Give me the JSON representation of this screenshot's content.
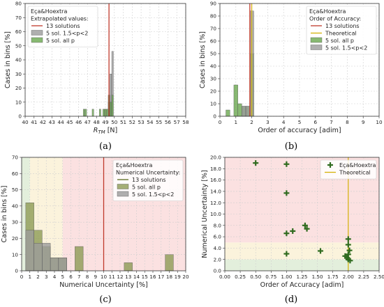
{
  "figure": {
    "panel_labels": [
      "(a)",
      "(b)",
      "(c)",
      "(d)"
    ]
  },
  "chart_data": [
    {
      "type": "bar",
      "panel": "(a)",
      "xlabel": "R_TM [N]",
      "ylabel": "Cases in bins [%]",
      "xlim": [
        40,
        58
      ],
      "ylim": [
        0,
        80
      ],
      "xticks": [
        40,
        41,
        42,
        43,
        44,
        45,
        46,
        47,
        48,
        49,
        50,
        51,
        52,
        53,
        54,
        55,
        56,
        57,
        58
      ],
      "yticks": [
        0,
        10,
        20,
        30,
        40,
        50,
        60,
        70,
        80
      ],
      "grid": true,
      "legend_title": "Eça&Hoextra\nExtrapolated values:",
      "legend_position": "top-left",
      "colors": {
        "line": "#c0392b",
        "s1": "#9b9b9b",
        "s2": "#6aa84f"
      },
      "vline": {
        "name": "13 solutions",
        "x": 49.4
      },
      "series": [
        {
          "name": "5 sol. 1.5<p<2",
          "bin_width": 0.18,
          "bins": [
            {
              "x": 49.0,
              "y": 5
            },
            {
              "x": 49.4,
              "y": 10
            },
            {
              "x": 49.6,
              "y": 30
            },
            {
              "x": 49.8,
              "y": 46
            }
          ]
        },
        {
          "name": "5 sol. all p",
          "bin_width": 0.18,
          "bins": [
            {
              "x": 46.6,
              "y": 5
            },
            {
              "x": 46.8,
              "y": 5
            },
            {
              "x": 47.6,
              "y": 5
            },
            {
              "x": 48.4,
              "y": 5
            },
            {
              "x": 48.8,
              "y": 5
            },
            {
              "x": 49.0,
              "y": 5
            },
            {
              "x": 49.2,
              "y": 5
            },
            {
              "x": 49.4,
              "y": 15
            },
            {
              "x": 49.6,
              "y": 10
            },
            {
              "x": 49.8,
              "y": 15
            }
          ]
        }
      ]
    },
    {
      "type": "bar",
      "panel": "(b)",
      "xlabel": "Order of accuracy [adim]",
      "ylabel": "Cases in bins [%]",
      "xlim": [
        0,
        10
      ],
      "ylim": [
        0,
        90
      ],
      "xticks": [
        0,
        1,
        2,
        3,
        4,
        5,
        6,
        7,
        8,
        9,
        10
      ],
      "yticks": [
        0,
        10,
        20,
        30,
        40,
        50,
        60,
        70,
        80,
        90
      ],
      "grid": true,
      "legend_title": "Eça&Hoextra\nOrder of Accuracy:",
      "legend_position": "top-right",
      "colors": {
        "line": "#c0392b",
        "theory": "#d4b106",
        "s1": "#6aa84f",
        "s2": "#9b9b9b"
      },
      "vline": {
        "name": "13 solutions",
        "x": 1.88
      },
      "theoretical": {
        "name": "Theoretical",
        "x": 2.0
      },
      "series": [
        {
          "name": "5 sol. all p",
          "bin_width": 0.25,
          "bins": [
            {
              "x": 0.5,
              "y": 5
            },
            {
              "x": 1.0,
              "y": 25
            },
            {
              "x": 1.25,
              "y": 10
            },
            {
              "x": 1.5,
              "y": 8
            },
            {
              "x": 1.75,
              "y": 8
            },
            {
              "x": 2.0,
              "y": 50
            }
          ]
        },
        {
          "name": "5 sol. 1.5<p<2",
          "bin_width": 0.25,
          "bins": [
            {
              "x": 1.5,
              "y": 8
            },
            {
              "x": 1.75,
              "y": 8
            },
            {
              "x": 2.0,
              "y": 84
            }
          ]
        }
      ]
    },
    {
      "type": "bar",
      "panel": "(c)",
      "xlabel": "Numerical Uncertainty [%]",
      "ylabel": "Cases in bins [%]",
      "xlim": [
        0,
        20
      ],
      "ylim": [
        0,
        70
      ],
      "xticks": [
        0,
        1,
        2,
        3,
        4,
        5,
        6,
        7,
        8,
        9,
        10,
        11,
        12,
        13,
        14,
        15,
        16,
        17,
        18,
        19,
        20
      ],
      "yticks": [
        0,
        10,
        20,
        30,
        40,
        50,
        60,
        70
      ],
      "grid": true,
      "legend_title": "Eça&Hoextra\nNumerical Uncertainty:",
      "legend_position": "top-right",
      "colors": {
        "line": "#c0392b",
        "vline_legend": "#5b6b1f",
        "s1": "#8d9b55",
        "s2": "#9b9b9b",
        "zone_green": "#e3efdc",
        "zone_yellow": "#fbf3dc",
        "zone_red": "#fbe1e1"
      },
      "zones": [
        {
          "from": 0,
          "to": 1,
          "color": "zone_green"
        },
        {
          "from": 1,
          "to": 5,
          "color": "zone_yellow"
        },
        {
          "from": 5,
          "to": 20,
          "color": "zone_red"
        }
      ],
      "vline": {
        "name": "13 solutions",
        "x": 10
      },
      "series": [
        {
          "name": "5 sol. all p",
          "bin_width": 1,
          "bins": [
            {
              "x": 1,
              "y": 42
            },
            {
              "x": 2,
              "y": 25
            },
            {
              "x": 3,
              "y": 15
            },
            {
              "x": 4,
              "y": 8
            },
            {
              "x": 5,
              "y": 8
            },
            {
              "x": 7,
              "y": 15
            },
            {
              "x": 13,
              "y": 5
            },
            {
              "x": 18,
              "y": 10
            }
          ]
        },
        {
          "name": "5 sol. 1.5<p<2",
          "bin_width": 1,
          "bins": [
            {
              "x": 1,
              "y": 25
            },
            {
              "x": 2,
              "y": 17
            },
            {
              "x": 3,
              "y": 17
            },
            {
              "x": 4,
              "y": 8
            },
            {
              "x": 5,
              "y": 8
            }
          ]
        }
      ]
    },
    {
      "type": "scatter",
      "panel": "(d)",
      "xlabel": "Order of Accuracy [adim]",
      "ylabel": "Numerical Uncertainty [%]",
      "xlim": [
        0,
        2.5
      ],
      "ylim": [
        0,
        20
      ],
      "xticks": [
        0.0,
        0.25,
        0.5,
        0.75,
        1.0,
        1.25,
        1.5,
        1.75,
        2.0,
        2.25,
        2.5
      ],
      "xtick_labels": [
        "0.00",
        "0.25",
        "0.50",
        "0.75",
        "1.00",
        "1.25",
        "1.50",
        "1.75",
        "2.00",
        "2.25",
        "2.50"
      ],
      "yticks": [
        0,
        2,
        4,
        6,
        8,
        10,
        12,
        14,
        16,
        18,
        20
      ],
      "ytick_labels": [
        "0.0",
        "2.0",
        "4.0",
        "6.0",
        "8.0",
        "10.0",
        "12.0",
        "14.0",
        "16.0",
        "18.0",
        "20.0"
      ],
      "grid": true,
      "legend_position": "top-right",
      "colors": {
        "marker": "#2f6b1f",
        "theory": "#d4b106",
        "zone_green": "#e3efdc",
        "zone_yellow": "#fbf3dc",
        "zone_red": "#fbe1e1"
      },
      "zones": [
        {
          "from": 0,
          "to": 2,
          "color": "zone_green"
        },
        {
          "from": 2,
          "to": 5,
          "color": "zone_yellow"
        },
        {
          "from": 5,
          "to": 20,
          "color": "zone_red"
        }
      ],
      "theoretical": {
        "name": "Theoretical",
        "x": 2.0
      },
      "series": [
        {
          "name": "Eça&Hoextra",
          "points": [
            {
              "x": 0.5,
              "y": 19.0
            },
            {
              "x": 1.0,
              "y": 18.8
            },
            {
              "x": 1.0,
              "y": 13.7
            },
            {
              "x": 1.0,
              "y": 6.6
            },
            {
              "x": 1.0,
              "y": 3.0
            },
            {
              "x": 1.1,
              "y": 7.0
            },
            {
              "x": 1.3,
              "y": 8.0
            },
            {
              "x": 1.33,
              "y": 7.4
            },
            {
              "x": 1.55,
              "y": 3.5
            },
            {
              "x": 1.95,
              "y": 2.6
            },
            {
              "x": 2.0,
              "y": 5.6
            },
            {
              "x": 2.0,
              "y": 4.6
            },
            {
              "x": 2.02,
              "y": 3.6
            },
            {
              "x": 2.0,
              "y": 2.9
            },
            {
              "x": 2.0,
              "y": 2.0
            },
            {
              "x": 2.03,
              "y": 1.8
            },
            {
              "x": 1.98,
              "y": 2.3
            }
          ]
        }
      ]
    }
  ]
}
